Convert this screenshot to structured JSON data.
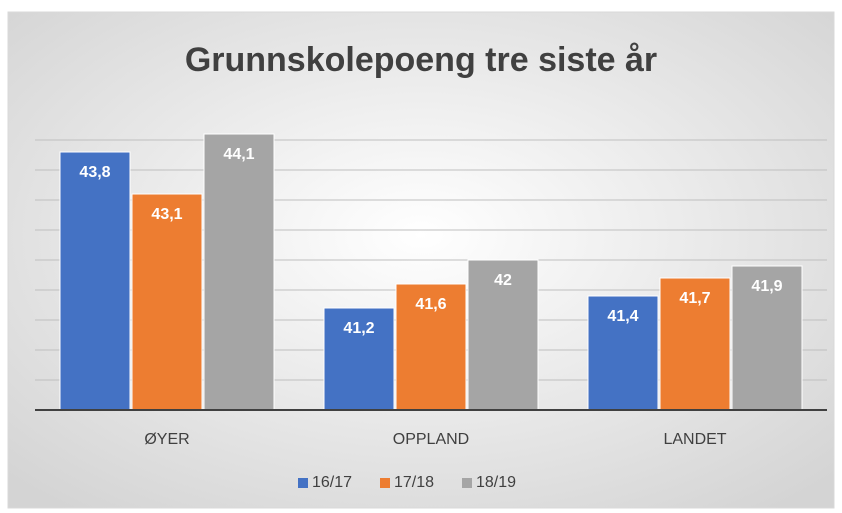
{
  "chart_data": {
    "type": "bar",
    "title": "Grunnskolepoeng tre siste år",
    "categories": [
      "ØYER",
      "OPPLAND",
      "LANDET"
    ],
    "series": [
      {
        "name": "16/17",
        "color": "#4472c4",
        "values": [
          43.8,
          41.2,
          41.4
        ],
        "value_labels": [
          "43,8",
          "41,2",
          "41,4"
        ]
      },
      {
        "name": "17/18",
        "color": "#ed7d31",
        "values": [
          43.1,
          41.6,
          41.7
        ],
        "value_labels": [
          "43,1",
          "41,6",
          "41,7"
        ]
      },
      {
        "name": "18/19",
        "color": "#a5a5a5",
        "values": [
          44.1,
          42,
          41.9
        ],
        "value_labels": [
          "44,1",
          "42",
          "41,9"
        ]
      }
    ],
    "ylim": [
      39.5,
      44.2
    ],
    "yticks": [
      40,
      40.5,
      41,
      41.5,
      42,
      42.5,
      43,
      43.5,
      44
    ],
    "grid": true,
    "legend": "bottom"
  }
}
